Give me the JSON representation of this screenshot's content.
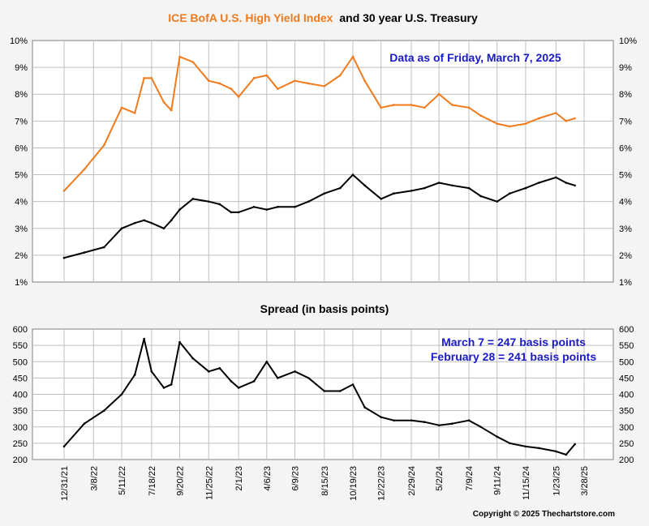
{
  "colors": {
    "hy": "#f07a1c",
    "treasury": "#000000",
    "annotation": "#1a1ac8",
    "grid": "#bfbfbf"
  },
  "titles": {
    "top_part1": "ICE BofA U.S. High Yield Index",
    "top_part2": "and 30 year U.S. Treasury",
    "bottom": "Spread (in basis points)"
  },
  "annotations": {
    "data_as_of": "Data as of Friday, March 7, 2025",
    "spread_current": "March 7 = 247 basis points",
    "spread_prior": "February 28 = 241 basis points"
  },
  "copyright": "Copyright © 2025 Thechartstore.com",
  "chart_data": [
    {
      "type": "line",
      "title": "ICE BofA U.S. High Yield Index and 30 year U.S. Treasury",
      "ylim": [
        1,
        10
      ],
      "yticks": [
        "1%",
        "2%",
        "3%",
        "4%",
        "5%",
        "6%",
        "7%",
        "8%",
        "9%",
        "10%"
      ],
      "x_dates": [
        "2021-12-31",
        "2022-02-15",
        "2022-04-01",
        "2022-05-11",
        "2022-06-10",
        "2022-07-01",
        "2022-07-18",
        "2022-08-15",
        "2022-09-01",
        "2022-09-20",
        "2022-10-20",
        "2022-11-25",
        "2022-12-20",
        "2023-01-15",
        "2023-02-01",
        "2023-03-08",
        "2023-04-06",
        "2023-05-01",
        "2023-06-09",
        "2023-07-10",
        "2023-08-15",
        "2023-09-20",
        "2023-10-19",
        "2023-11-15",
        "2023-12-22",
        "2024-01-20",
        "2024-02-29",
        "2024-03-30",
        "2024-05-02",
        "2024-06-01",
        "2024-07-09",
        "2024-08-05",
        "2024-09-11",
        "2024-10-10",
        "2024-11-15",
        "2024-12-15",
        "2025-01-23",
        "2025-02-15",
        "2025-03-07"
      ],
      "series": [
        {
          "name": "ICE BofA U.S. High Yield Index",
          "color": "#f07a1c",
          "values": [
            4.4,
            5.2,
            6.1,
            7.5,
            7.3,
            8.6,
            8.6,
            7.7,
            7.4,
            9.4,
            9.2,
            8.5,
            8.4,
            8.2,
            7.9,
            8.6,
            8.7,
            8.2,
            8.5,
            8.4,
            8.3,
            8.7,
            9.4,
            8.5,
            7.5,
            7.6,
            7.6,
            7.5,
            8.0,
            7.6,
            7.5,
            7.2,
            6.9,
            6.8,
            6.9,
            7.1,
            7.3,
            7.0,
            7.1
          ]
        },
        {
          "name": "30 year U.S. Treasury",
          "color": "#000000",
          "values": [
            1.9,
            2.1,
            2.3,
            3.0,
            3.2,
            3.3,
            3.2,
            3.0,
            3.3,
            3.7,
            4.1,
            4.0,
            3.9,
            3.6,
            3.6,
            3.8,
            3.7,
            3.8,
            3.8,
            4.0,
            4.3,
            4.5,
            5.0,
            4.6,
            4.1,
            4.3,
            4.4,
            4.5,
            4.7,
            4.6,
            4.5,
            4.2,
            4.0,
            4.3,
            4.5,
            4.7,
            4.9,
            4.7,
            4.6
          ]
        }
      ]
    },
    {
      "type": "line",
      "title": "Spread (in basis points)",
      "ylim": [
        200,
        600
      ],
      "yticks": [
        "200",
        "250",
        "300",
        "350",
        "400",
        "450",
        "500",
        "550",
        "600"
      ],
      "x_dates": [
        "2021-12-31",
        "2022-02-15",
        "2022-04-01",
        "2022-05-11",
        "2022-06-10",
        "2022-07-01",
        "2022-07-18",
        "2022-08-15",
        "2022-09-01",
        "2022-09-20",
        "2022-10-20",
        "2022-11-25",
        "2022-12-20",
        "2023-01-15",
        "2023-02-01",
        "2023-03-08",
        "2023-04-06",
        "2023-05-01",
        "2023-06-09",
        "2023-07-10",
        "2023-08-15",
        "2023-09-20",
        "2023-10-19",
        "2023-11-15",
        "2023-12-22",
        "2024-01-20",
        "2024-02-29",
        "2024-03-30",
        "2024-05-02",
        "2024-06-01",
        "2024-07-09",
        "2024-08-05",
        "2024-09-11",
        "2024-10-10",
        "2024-11-15",
        "2024-12-15",
        "2025-01-23",
        "2025-02-15",
        "2025-03-07"
      ],
      "series": [
        {
          "name": "Spread",
          "color": "#000000",
          "values": [
            240,
            310,
            350,
            400,
            460,
            570,
            470,
            420,
            430,
            560,
            510,
            470,
            480,
            440,
            420,
            440,
            500,
            450,
            470,
            450,
            410,
            410,
            430,
            360,
            330,
            320,
            320,
            315,
            305,
            310,
            320,
            300,
            270,
            250,
            240,
            235,
            225,
            215,
            247
          ]
        }
      ],
      "xticks": [
        "12/31/21",
        "3/8/22",
        "5/11/22",
        "7/18/22",
        "9/20/22",
        "11/25/22",
        "2/1/23",
        "4/6/23",
        "6/9/23",
        "8/15/23",
        "10/19/23",
        "12/22/23",
        "2/29/24",
        "5/2/24",
        "7/9/24",
        "9/11/24",
        "11/15/24",
        "1/23/25",
        "3/28/25"
      ]
    }
  ]
}
